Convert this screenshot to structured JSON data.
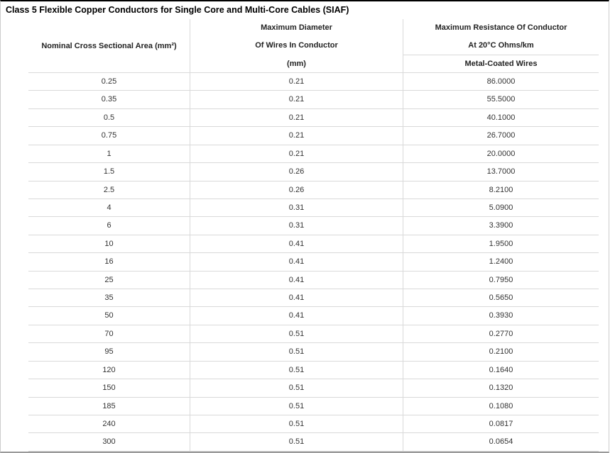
{
  "title": "Class 5 Flexible Copper Conductors for Single Core and Multi-Core Cables (SIAF)",
  "table": {
    "columns": {
      "area_header": "Nominal Cross Sectional Area (mm²)",
      "diameter_header_lines": [
        "Maximum Diameter",
        "Of Wires In Conductor",
        "(mm)"
      ],
      "resistance_header_lines": [
        "Maximum Resistance Of Conductor",
        "At 20°C Ohms/km"
      ],
      "resistance_subheader": "Metal-Coated Wires"
    },
    "rows": [
      {
        "area": "0.25",
        "max_diameter": "0.21",
        "max_resistance": "86.0000"
      },
      {
        "area": "0.35",
        "max_diameter": "0.21",
        "max_resistance": "55.5000"
      },
      {
        "area": "0.5",
        "max_diameter": "0.21",
        "max_resistance": "40.1000"
      },
      {
        "area": "0.75",
        "max_diameter": "0.21",
        "max_resistance": "26.7000"
      },
      {
        "area": "1",
        "max_diameter": "0.21",
        "max_resistance": "20.0000"
      },
      {
        "area": "1.5",
        "max_diameter": "0.26",
        "max_resistance": "13.7000"
      },
      {
        "area": "2.5",
        "max_diameter": "0.26",
        "max_resistance": "8.2100"
      },
      {
        "area": "4",
        "max_diameter": "0.31",
        "max_resistance": "5.0900"
      },
      {
        "area": "6",
        "max_diameter": "0.31",
        "max_resistance": "3.3900"
      },
      {
        "area": "10",
        "max_diameter": "0.41",
        "max_resistance": "1.9500"
      },
      {
        "area": "16",
        "max_diameter": "0.41",
        "max_resistance": "1.2400"
      },
      {
        "area": "25",
        "max_diameter": "0.41",
        "max_resistance": "0.7950"
      },
      {
        "area": "35",
        "max_diameter": "0.41",
        "max_resistance": "0.5650"
      },
      {
        "area": "50",
        "max_diameter": "0.41",
        "max_resistance": "0.3930"
      },
      {
        "area": "70",
        "max_diameter": "0.51",
        "max_resistance": "0.2770"
      },
      {
        "area": "95",
        "max_diameter": "0.51",
        "max_resistance": "0.2100"
      },
      {
        "area": "120",
        "max_diameter": "0.51",
        "max_resistance": "0.1640"
      },
      {
        "area": "150",
        "max_diameter": "0.51",
        "max_resistance": "0.1320"
      },
      {
        "area": "185",
        "max_diameter": "0.51",
        "max_resistance": "0.1080"
      },
      {
        "area": "240",
        "max_diameter": "0.51",
        "max_resistance": "0.0817"
      },
      {
        "area": "300",
        "max_diameter": "0.51",
        "max_resistance": "0.0654"
      }
    ]
  },
  "colors": {
    "border_light": "#d9d9d9",
    "border_top": "#000000",
    "border_bottom": "#9a9a9a",
    "title_text": "#000000",
    "header_text": "#222222",
    "cell_text": "#333333",
    "background": "#ffffff"
  }
}
